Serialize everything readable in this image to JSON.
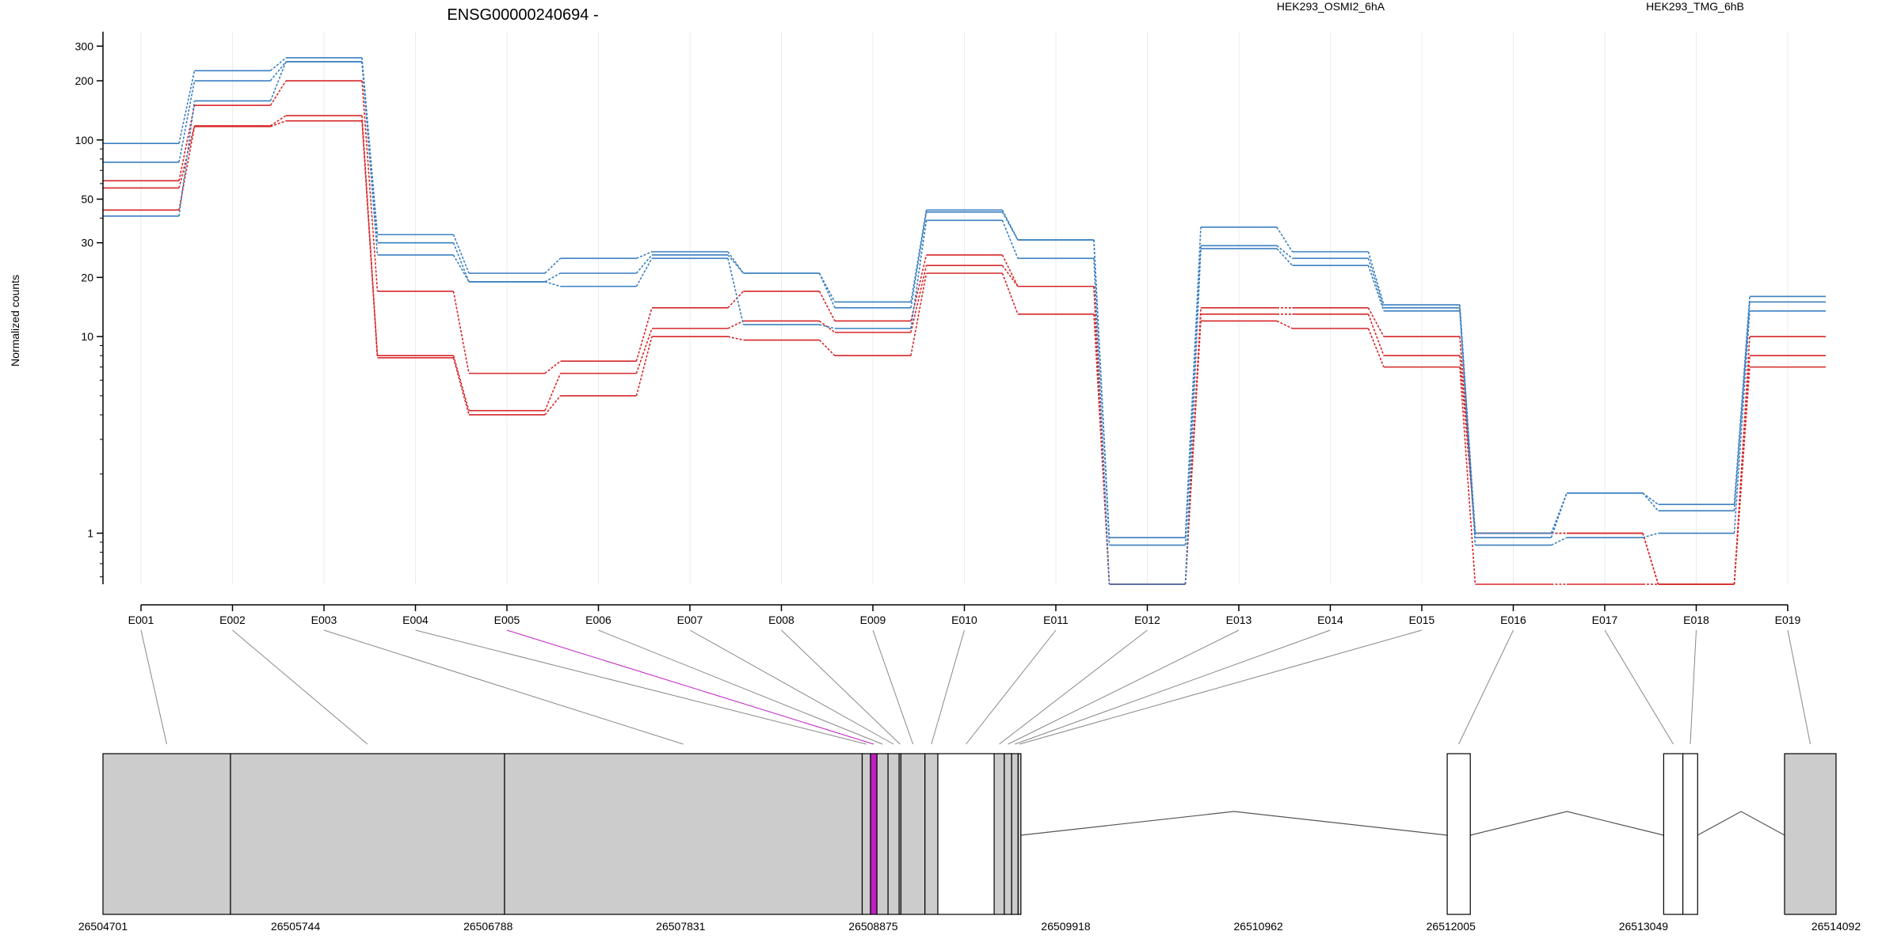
{
  "chart_data": {
    "type": "line",
    "title": "ENSG00000240694 -",
    "xlabel": "",
    "ylabel": "Normalized counts",
    "yscale": "log",
    "yticks": [
      "300",
      "200",
      "100",
      "50",
      "30",
      "20",
      "10",
      "1"
    ],
    "ylim": [
      0.55,
      330
    ],
    "categories": [
      "E001",
      "E002",
      "E003",
      "E004",
      "E005",
      "E006",
      "E007",
      "E008",
      "E009",
      "E010",
      "E011",
      "E012",
      "E013",
      "E014",
      "E015",
      "E016",
      "E017",
      "E018",
      "E019"
    ],
    "legend": [
      {
        "name": "HEK293_OSMI2_6hA",
        "color": "#d62728"
      },
      {
        "name": "HEK293_TMG_6hB",
        "color": "#3a7fc0"
      }
    ],
    "series": [
      {
        "group": 0,
        "values": [
          62,
          150,
          200,
          17,
          6.5,
          7.5,
          14,
          17,
          12,
          26,
          18,
          0.55,
          14,
          14,
          10,
          1.0,
          1.0,
          0.55,
          10
        ]
      },
      {
        "group": 0,
        "values": [
          57,
          118,
          133,
          8,
          4.2,
          6.5,
          11,
          12,
          10.5,
          23,
          18,
          0.55,
          13,
          13,
          8,
          1.0,
          1.0,
          0.55,
          8
        ]
      },
      {
        "group": 0,
        "values": [
          44,
          117,
          125,
          7.8,
          4.0,
          5.0,
          10,
          9.6,
          8,
          21,
          13,
          0.55,
          12,
          11,
          7,
          0.55,
          0.55,
          0.55,
          7
        ]
      },
      {
        "group": 1,
        "values": [
          96,
          225,
          262,
          33,
          21,
          25,
          27,
          21,
          15,
          44,
          31,
          0.95,
          36,
          27,
          14.5,
          1.0,
          1.6,
          1.4,
          16
        ]
      },
      {
        "group": 1,
        "values": [
          77,
          200,
          250,
          30,
          19,
          21,
          26,
          21,
          14,
          43,
          31,
          0.87,
          29,
          25,
          14,
          0.95,
          1.6,
          1.3,
          15
        ]
      },
      {
        "group": 1,
        "values": [
          41,
          158,
          250,
          26,
          19,
          18,
          25,
          11.5,
          11,
          39,
          25,
          0.55,
          28,
          23,
          13.5,
          0.87,
          0.95,
          1.0,
          13.5
        ]
      }
    ],
    "grid": true,
    "gene_model": {
      "coordinate_labels": [
        "26504701",
        "26505744",
        "26506788",
        "26507831",
        "26508875",
        "26509918",
        "26510962",
        "26512005",
        "26513049",
        "26514092"
      ],
      "start": 26504701,
      "end": 26514092,
      "highlight_exon": "E005",
      "highlight_color": "#c020c0",
      "exon_colors": {
        "filled": "#cccccc",
        "empty": "#ffffff"
      },
      "exons": [
        {
          "id": "E001",
          "start": 26504701,
          "end": 26505392,
          "filled": true
        },
        {
          "id": "E002",
          "start": 26505392,
          "end": 26506877,
          "filled": true
        },
        {
          "id": "E003",
          "start": 26506877,
          "end": 26508815,
          "filled": true
        },
        {
          "id": "E004",
          "start": 26508815,
          "end": 26508860,
          "filled": true
        },
        {
          "id": "E005",
          "start": 26508860,
          "end": 26508895,
          "filled": true
        },
        {
          "id": "E006",
          "start": 26508895,
          "end": 26508955,
          "filled": true
        },
        {
          "id": "E007",
          "start": 26508955,
          "end": 26509015,
          "filled": true
        },
        {
          "id": "E008",
          "start": 26509015,
          "end": 26509025,
          "filled": true
        },
        {
          "id": "E009",
          "start": 26509025,
          "end": 26509155,
          "filled": true
        },
        {
          "id": "E010",
          "start": 26509155,
          "end": 26509225,
          "filled": true
        },
        {
          "id": "E011",
          "start": 26509225,
          "end": 26509530,
          "filled": false
        },
        {
          "id": "E012",
          "start": 26509530,
          "end": 26509585,
          "filled": true
        },
        {
          "id": "E013",
          "start": 26509585,
          "end": 26509625,
          "filled": true
        },
        {
          "id": "E014",
          "start": 26509625,
          "end": 26509660,
          "filled": true
        },
        {
          "id": "E015",
          "start": 26509660,
          "end": 26509675,
          "filled": true
        },
        {
          "id": "E016",
          "start": 26511985,
          "end": 26512110,
          "filled": false
        },
        {
          "id": "E017",
          "start": 26513158,
          "end": 26513262,
          "filled": false
        },
        {
          "id": "E018",
          "start": 26513262,
          "end": 26513342,
          "filled": false
        },
        {
          "id": "E019",
          "start": 26513813,
          "end": 26514092,
          "filled": true
        }
      ],
      "introns": [
        {
          "start": 26509675,
          "end": 26511985
        },
        {
          "start": 26512110,
          "end": 26513158
        },
        {
          "start": 26513342,
          "end": 26513813
        }
      ]
    }
  }
}
